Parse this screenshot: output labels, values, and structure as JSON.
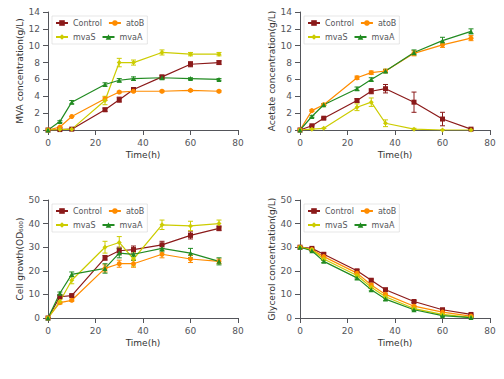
{
  "chart_data": [
    {
      "type": "line",
      "xlabel": "Time(h)",
      "ylabel": "MVA concentration(g/L)",
      "x": [
        0,
        5,
        10,
        24,
        30,
        36,
        48,
        60,
        72
      ],
      "xlim": [
        0,
        80
      ],
      "xticks": [
        0,
        20,
        40,
        60,
        80
      ],
      "ylim": [
        0,
        14
      ],
      "yticks": [
        0,
        2,
        4,
        6,
        8,
        10,
        12,
        14
      ],
      "grid": false,
      "legend": "upper left",
      "series": [
        {
          "name": "Control",
          "color": "#8B1A1A",
          "marker": "square",
          "values": [
            0,
            0.05,
            0.1,
            2.4,
            3.6,
            4.8,
            6.3,
            7.8,
            8.0
          ],
          "errors": [
            0,
            0.0,
            0.0,
            0.2,
            0.3,
            0.2,
            0.2,
            0.3,
            0.2
          ]
        },
        {
          "name": "atoB",
          "color": "#FF8C00",
          "marker": "circle",
          "values": [
            0,
            0.35,
            1.6,
            3.7,
            4.5,
            4.6,
            4.6,
            4.7,
            4.6
          ],
          "errors": [
            0,
            0.0,
            0.0,
            0.2,
            0.1,
            0.1,
            0.1,
            0.1,
            0.1
          ]
        },
        {
          "name": "mvaS",
          "color": "#CCCC00",
          "marker": "diamond",
          "values": [
            0,
            0.05,
            0.1,
            3.5,
            8.0,
            8.0,
            9.2,
            9.0,
            9.0
          ],
          "errors": [
            0,
            0.0,
            0.0,
            0.5,
            0.5,
            0.3,
            0.3,
            0.2,
            0.2
          ]
        },
        {
          "name": "mvaA",
          "color": "#228B22",
          "marker": "triangle",
          "values": [
            0,
            1.0,
            3.3,
            5.4,
            5.9,
            6.1,
            6.2,
            6.1,
            6.0
          ],
          "errors": [
            0,
            0.1,
            0.2,
            0.2,
            0.2,
            0.2,
            0.2,
            0.1,
            0.1
          ]
        }
      ]
    },
    {
      "type": "line",
      "xlabel": "Time(h)",
      "ylabel": "Acetate concentration(g/L)",
      "x": [
        0,
        5,
        10,
        24,
        30,
        36,
        48,
        60,
        72
      ],
      "xlim": [
        0,
        80
      ],
      "xticks": [
        0,
        20,
        40,
        60,
        80
      ],
      "ylim": [
        0,
        14
      ],
      "yticks": [
        0,
        2,
        4,
        6,
        8,
        10,
        12,
        14
      ],
      "grid": false,
      "legend": "upper left",
      "series": [
        {
          "name": "Control",
          "color": "#8B1A1A",
          "marker": "square",
          "values": [
            0,
            0.5,
            1.4,
            3.5,
            4.6,
            4.9,
            3.3,
            1.3,
            0.1
          ],
          "errors": [
            0,
            0.0,
            0.1,
            0.2,
            0.3,
            0.5,
            1.2,
            0.8,
            0.1
          ]
        },
        {
          "name": "atoB",
          "color": "#FF8C00",
          "marker": "circle",
          "values": [
            0,
            2.3,
            3.0,
            6.2,
            6.8,
            7.0,
            9.1,
            10.1,
            10.9
          ],
          "errors": [
            0,
            0.1,
            0.1,
            0.2,
            0.2,
            0.2,
            0.3,
            0.3,
            0.3
          ]
        },
        {
          "name": "mvaS",
          "color": "#CCCC00",
          "marker": "diamond",
          "values": [
            0,
            0.1,
            0.2,
            2.7,
            3.3,
            0.8,
            0.1,
            0.0,
            0.0
          ],
          "errors": [
            0,
            0.0,
            0.0,
            0.4,
            0.5,
            0.4,
            0.1,
            0.0,
            0.0
          ]
        },
        {
          "name": "mvaA",
          "color": "#228B22",
          "marker": "triangle",
          "values": [
            0,
            1.6,
            3.0,
            4.9,
            6.0,
            7.0,
            9.2,
            10.6,
            11.7
          ],
          "errors": [
            0,
            0.1,
            0.1,
            0.2,
            0.2,
            0.2,
            0.3,
            0.4,
            0.3
          ]
        }
      ]
    },
    {
      "type": "line",
      "xlabel": "Time(h)",
      "ylabel": "Cell growth(OD₆₀₀)",
      "x": [
        0,
        5,
        10,
        24,
        30,
        36,
        48,
        60,
        72
      ],
      "xlim": [
        0,
        80
      ],
      "xticks": [
        0,
        20,
        40,
        60,
        80
      ],
      "ylim": [
        0,
        50
      ],
      "yticks": [
        0,
        10,
        20,
        30,
        40,
        50
      ],
      "grid": false,
      "legend": "upper left",
      "series": [
        {
          "name": "Control",
          "color": "#8B1A1A",
          "marker": "square",
          "values": [
            0,
            9.0,
            9.5,
            25.5,
            28.5,
            29.0,
            31.0,
            35.0,
            38.0
          ],
          "errors": [
            0,
            0.5,
            0.5,
            1.0,
            1.5,
            1.5,
            1.5,
            1.5,
            1.0
          ]
        },
        {
          "name": "atoB",
          "color": "#FF8C00",
          "marker": "circle",
          "values": [
            0,
            6.5,
            7.5,
            21.0,
            23.0,
            23.0,
            27.0,
            25.0,
            24.0
          ],
          "errors": [
            0,
            0.5,
            0.5,
            1.5,
            1.5,
            1.5,
            1.5,
            1.5,
            1.0
          ]
        },
        {
          "name": "mvaS",
          "color": "#CCCC00",
          "marker": "diamond",
          "values": [
            0,
            7.0,
            16.0,
            30.0,
            32.0,
            25.0,
            39.5,
            39.0,
            40.0
          ],
          "errors": [
            0,
            1.0,
            1.5,
            2.5,
            2.5,
            3.0,
            2.0,
            2.0,
            1.5
          ]
        },
        {
          "name": "mvaA",
          "color": "#228B22",
          "marker": "triangle",
          "values": [
            0,
            10.5,
            18.5,
            21.0,
            27.5,
            27.0,
            29.5,
            27.5,
            24.0
          ],
          "errors": [
            0,
            0.5,
            1.0,
            2.0,
            2.0,
            2.5,
            1.5,
            2.0,
            1.5
          ]
        }
      ]
    },
    {
      "type": "line",
      "xlabel": "Time(h)",
      "ylabel": "Glycerol concentration(g/L)",
      "x": [
        0,
        5,
        10,
        24,
        30,
        36,
        48,
        60,
        72
      ],
      "xlim": [
        0,
        80
      ],
      "xticks": [
        0,
        20,
        40,
        60,
        80
      ],
      "ylim": [
        0,
        50
      ],
      "yticks": [
        0,
        10,
        20,
        30,
        40,
        50
      ],
      "grid": false,
      "legend": "upper left",
      "series": [
        {
          "name": "Control",
          "color": "#8B1A1A",
          "marker": "square",
          "values": [
            30,
            29.5,
            27,
            20,
            16,
            12,
            7,
            3.5,
            1.5
          ],
          "errors": [
            0,
            0.3,
            0.5,
            0.5,
            0.5,
            0.5,
            0.4,
            0.3,
            0.2
          ]
        },
        {
          "name": "atoB",
          "color": "#FF8C00",
          "marker": "circle",
          "values": [
            30,
            29,
            26,
            19,
            14,
            10,
            5,
            2.5,
            0.8
          ],
          "errors": [
            0,
            0.3,
            0.5,
            0.5,
            0.5,
            0.5,
            0.4,
            0.3,
            0.1
          ]
        },
        {
          "name": "mvaS",
          "color": "#CCCC00",
          "marker": "diamond",
          "values": [
            30,
            29,
            25,
            18,
            13,
            9,
            4,
            1.5,
            0.3
          ],
          "errors": [
            0,
            0.3,
            0.5,
            0.5,
            0.5,
            0.5,
            0.4,
            0.3,
            0.1
          ]
        },
        {
          "name": "mvaA",
          "color": "#228B22",
          "marker": "triangle",
          "values": [
            30,
            28.5,
            24,
            17,
            12,
            8,
            3.5,
            1.0,
            0.2
          ],
          "errors": [
            0,
            0.3,
            0.5,
            0.5,
            0.5,
            0.5,
            0.4,
            0.3,
            0.1
          ]
        }
      ]
    }
  ]
}
